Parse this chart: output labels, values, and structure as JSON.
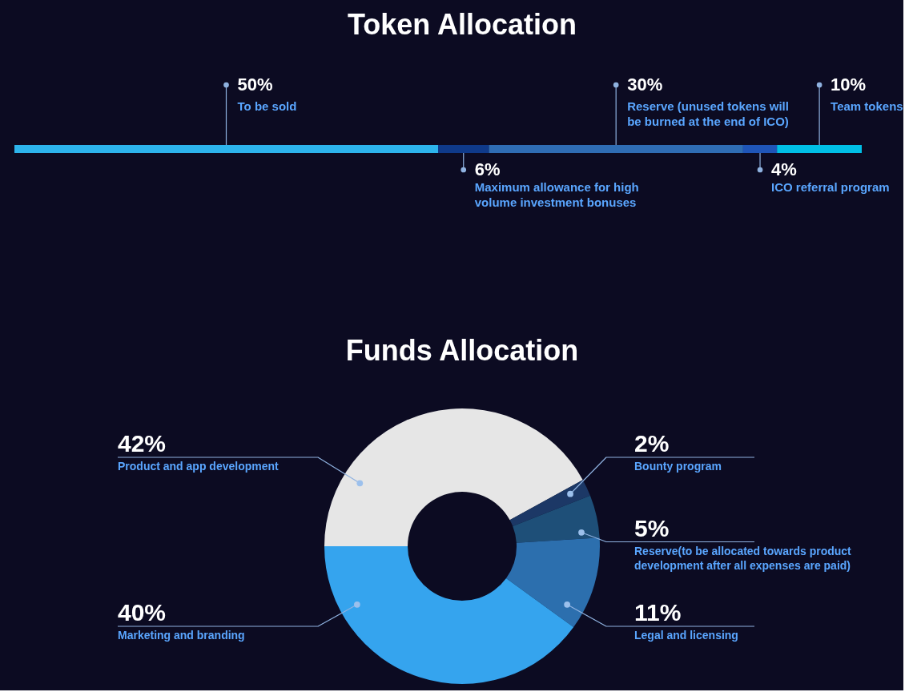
{
  "chart_data": [
    {
      "type": "bar",
      "title": "Token Allocation",
      "orientation": "horizontal",
      "stacked": true,
      "tick_labels": false,
      "categories": [
        null
      ],
      "series": [
        {
          "name": "To be sold",
          "color": "#2db4ec",
          "values": [
            50
          ],
          "value_labels": [
            "50%"
          ]
        },
        {
          "name": "Maximum allowance for high volume investment bonuses",
          "color": "#0f3a8a",
          "values": [
            6
          ],
          "value_labels": [
            "6%"
          ]
        },
        {
          "name": "Reserve (unused tokens will be burned at the end of ICO)",
          "color": "#2f6db4",
          "values": [
            30
          ],
          "value_labels": [
            "30%"
          ]
        },
        {
          "name": "ICO referral program",
          "color": "#1f55b8",
          "values": [
            4
          ],
          "value_labels": [
            "4%"
          ]
        },
        {
          "name": "Team tokens",
          "color": "#00bfe6",
          "values": [
            10
          ],
          "value_labels": [
            "10%"
          ]
        }
      ]
    },
    {
      "type": "donut",
      "title": "Funds Allocation",
      "categories": [
        "Product and app development",
        "Bounty program",
        "Reserve(to be allocated towards product development after all expenses are paid)",
        "Legal and licensing",
        "Marketing and branding"
      ],
      "values": [
        42,
        2,
        5,
        11,
        40
      ],
      "colors": [
        "#e6e6e6",
        "#1c3866",
        "#1e4f78",
        "#2c6fae",
        "#35a4ee"
      ],
      "value_labels": [
        "42%",
        "2%",
        "5%",
        "11%",
        "40%"
      ]
    }
  ]
}
